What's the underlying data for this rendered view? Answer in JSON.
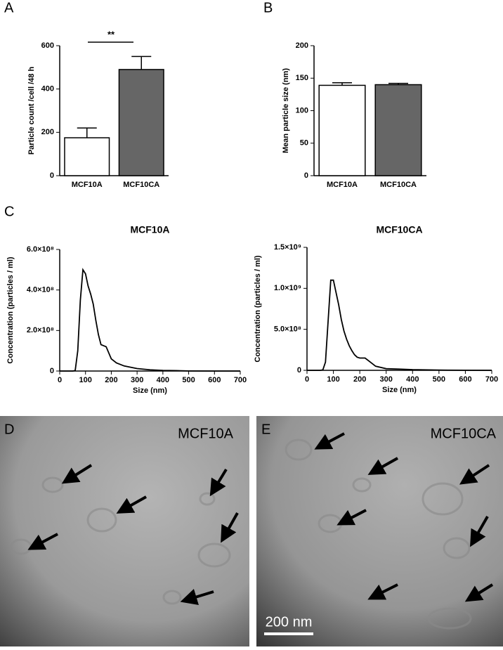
{
  "panel_labels": [
    "A",
    "B",
    "C",
    "D",
    "E"
  ],
  "chart_data": [
    {
      "type": "bar",
      "ylabel": "Particle count /cell /48 h",
      "categories": [
        "MCF10A",
        "MCF10CA"
      ],
      "values": [
        175,
        490
      ],
      "errors": [
        45,
        60
      ],
      "colors": [
        "#ffffff",
        "#666666"
      ],
      "ylim": [
        0,
        600
      ],
      "yticks": [
        0,
        200,
        400,
        600
      ],
      "annotation": "**"
    },
    {
      "type": "bar",
      "ylabel": "Mean particle size (nm)",
      "categories": [
        "MCF10A",
        "MCF10CA"
      ],
      "values": [
        139,
        140
      ],
      "errors": [
        4,
        2
      ],
      "colors": [
        "#ffffff",
        "#666666"
      ],
      "ylim": [
        0,
        200
      ],
      "yticks": [
        0,
        50,
        100,
        150,
        200
      ]
    },
    {
      "type": "line",
      "title": "MCF10A",
      "xlabel": "Size (nm)",
      "ylabel": "Concentration (particles / ml)",
      "color": "#000000",
      "x": [
        0,
        50,
        60,
        70,
        80,
        90,
        100,
        110,
        120,
        130,
        140,
        150,
        160,
        170,
        180,
        190,
        200,
        220,
        250,
        300,
        350,
        400,
        450,
        500,
        600,
        700
      ],
      "values": [
        0,
        0,
        2000000,
        100000000,
        350000000,
        500000000,
        480000000,
        420000000,
        380000000,
        330000000,
        250000000,
        180000000,
        130000000,
        125000000,
        120000000,
        90000000,
        60000000,
        40000000,
        25000000,
        12000000,
        6000000,
        3000000,
        2000000,
        500000,
        0,
        0
      ],
      "xlim": [
        0,
        700
      ],
      "xticks": [
        0,
        100,
        200,
        300,
        400,
        500,
        600,
        700
      ],
      "ylim": [
        0,
        600000000
      ],
      "yticks": [
        0,
        {
          "value": 200000000,
          "label": "2.0×10⁸"
        },
        {
          "value": 400000000,
          "label": "4.0×10⁸"
        },
        {
          "value": 600000000,
          "label": "6.0×10⁸"
        }
      ]
    },
    {
      "type": "line",
      "title": "MCF10CA",
      "xlabel": "Size (nm)",
      "ylabel": "Concentration (particles / ml)",
      "color": "#000000",
      "x": [
        0,
        50,
        60,
        70,
        80,
        90,
        100,
        110,
        120,
        130,
        140,
        150,
        160,
        170,
        180,
        190,
        200,
        220,
        240,
        260,
        300,
        350,
        400,
        500,
        600,
        700
      ],
      "values": [
        0,
        0,
        5000000,
        100000000,
        600000000,
        1100000000,
        1100000000,
        950000000,
        800000000,
        620000000,
        480000000,
        380000000,
        300000000,
        240000000,
        190000000,
        160000000,
        150000000,
        150000000,
        100000000,
        50000000,
        20000000,
        15000000,
        8000000,
        3000000,
        1000000,
        0
      ],
      "xlim": [
        0,
        700
      ],
      "xticks": [
        0,
        100,
        200,
        300,
        400,
        500,
        600,
        700
      ],
      "ylim": [
        0,
        1500000000
      ],
      "yticks": [
        0,
        {
          "value": 500000000,
          "label": "5.0×10⁸"
        },
        {
          "value": 1000000000,
          "label": "1.0×10⁹"
        },
        {
          "value": 1500000000,
          "label": "1.5×10⁹"
        }
      ]
    }
  ],
  "micrographs": [
    {
      "label": "MCF10A"
    },
    {
      "label": "MCF10CA",
      "scale_bar": "200 nm"
    }
  ]
}
